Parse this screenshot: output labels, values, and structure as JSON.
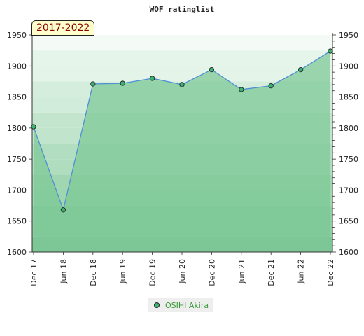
{
  "chart_data": {
    "type": "area",
    "title": "WOF ratinglist",
    "badge": "2017-2022",
    "xlabel": "",
    "ylabel": "",
    "categories": [
      "Dec 17",
      "Jun 18",
      "Dec 18",
      "Jun 19",
      "Dec 19",
      "Jun 20",
      "Dec 20",
      "Jun 21",
      "Dec 21",
      "Jun 22",
      "Dec 22"
    ],
    "series": [
      {
        "name": "OSIHI Akira",
        "values": [
          1802,
          1668,
          1871,
          1872,
          1880,
          1870,
          1894,
          1862,
          1868,
          1894,
          1924
        ]
      }
    ],
    "ylim": [
      1600,
      1950
    ],
    "yticks": [
      "1600",
      "1650",
      "1700",
      "1750",
      "1800",
      "1850",
      "1900",
      "1950"
    ],
    "grid": true,
    "legend_position": "bottom",
    "colors": {
      "line": "#4f8fd4",
      "area": "#7cc795",
      "marker_fill": "#3cb371",
      "band_light": "#f2faf4",
      "band_dark": "#7cc795"
    }
  }
}
